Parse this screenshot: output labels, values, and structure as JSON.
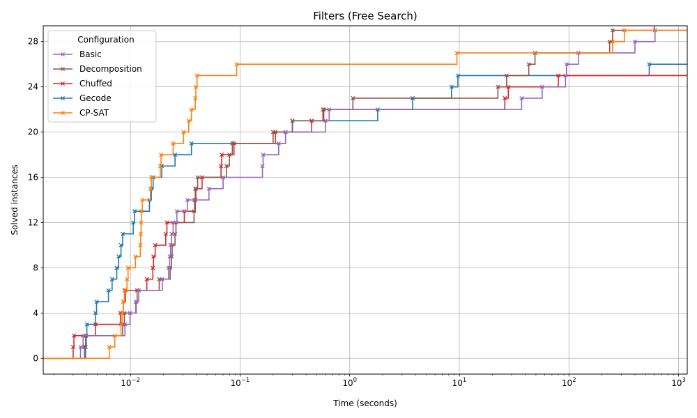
{
  "chart_data": {
    "type": "line",
    "title": "Filters (Free Search)",
    "xlabel": "Time (seconds)",
    "ylabel": "Solved instances",
    "xscale": "log",
    "xlim": [
      0.0016,
      1200
    ],
    "ylim": [
      -1.4,
      29.4
    ],
    "grid": true,
    "legend": {
      "title": "Configuration",
      "position": "top-left"
    },
    "x_ticks": [
      {
        "value": 0.01,
        "base": "10",
        "exp": "−2"
      },
      {
        "value": 0.1,
        "base": "10",
        "exp": "−1"
      },
      {
        "value": 1,
        "base": "10",
        "exp": "0"
      },
      {
        "value": 10,
        "base": "10",
        "exp": "1"
      },
      {
        "value": 100,
        "base": "10",
        "exp": "2"
      },
      {
        "value": 1000,
        "base": "10",
        "exp": "3"
      }
    ],
    "y_ticks": [
      "0",
      "4",
      "8",
      "12",
      "16",
      "20",
      "24",
      "28"
    ],
    "series": [
      {
        "name": "Basic",
        "color": "#9467bd",
        "times": [
          0.0035,
          0.0037,
          0.0089,
          0.0099,
          0.0113,
          0.0119,
          0.0195,
          0.0223,
          0.0228,
          0.0232,
          0.0237,
          0.0245,
          0.0265,
          0.033,
          0.052,
          0.07,
          0.16,
          0.162,
          0.225,
          0.26,
          0.6,
          0.65,
          37,
          57,
          93,
          95,
          122,
          400,
          610
        ]
      },
      {
        "name": "Decomposition",
        "color": "#8c564b",
        "times": [
          0.0038,
          0.0039,
          0.0085,
          0.0088,
          0.0112,
          0.0115,
          0.0183,
          0.023,
          0.0237,
          0.024,
          0.0255,
          0.026,
          0.038,
          0.0385,
          0.039,
          0.041,
          0.075,
          0.08,
          0.085,
          0.2,
          0.3,
          0.57,
          1.07,
          22.5,
          27,
          43,
          49,
          235,
          250,
          600
        ]
      },
      {
        "name": "Chuffed",
        "color": "#d62728",
        "times": [
          0.003,
          0.00305,
          0.0048,
          0.0081,
          0.0086,
          0.009,
          0.0141,
          0.016,
          0.0162,
          0.0168,
          0.021,
          0.0215,
          0.031,
          0.039,
          0.0395,
          0.045,
          0.067,
          0.068,
          0.088,
          0.21,
          0.45,
          0.58,
          26,
          28,
          80
        ]
      },
      {
        "name": "Gecode",
        "color": "#1f77b4",
        "times": [
          0.0039,
          0.00395,
          0.004,
          0.0048,
          0.0049,
          0.0063,
          0.0068,
          0.0075,
          0.0078,
          0.0082,
          0.0085,
          0.0106,
          0.0109,
          0.0149,
          0.0155,
          0.0161,
          0.0193,
          0.0255,
          0.036,
          0.26,
          0.3,
          1.8,
          3.75,
          8.5,
          9.7,
          540
        ]
      },
      {
        "name": "CP-SAT",
        "color": "#ff7f0e",
        "times": [
          0.0064,
          0.0072,
          0.0082,
          0.0084,
          0.0086,
          0.0088,
          0.0093,
          0.0095,
          0.0111,
          0.0123,
          0.0124,
          0.0125,
          0.0126,
          0.0128,
          0.0152,
          0.0155,
          0.0187,
          0.019,
          0.0245,
          0.0305,
          0.034,
          0.036,
          0.039,
          0.0395,
          0.0405,
          0.093,
          9.5,
          250,
          320
        ]
      }
    ]
  }
}
